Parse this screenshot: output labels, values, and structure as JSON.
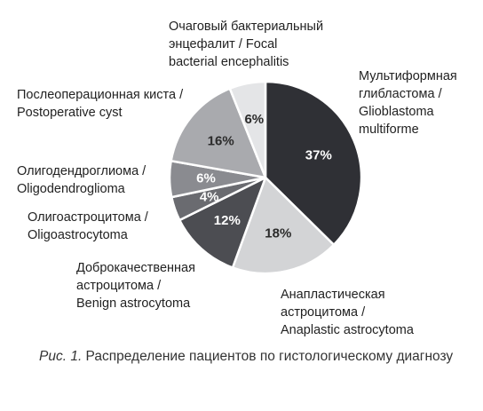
{
  "chart_data": {
    "type": "pie",
    "slices": [
      {
        "label_ru": "Мультиформная глибластома /",
        "label_en": "Glioblastoma multiforme",
        "value": 37,
        "value_label": "37%",
        "color": "#2f3035",
        "text_color": "#ffffff"
      },
      {
        "label_ru": "Анапластическая астроцитома /",
        "label_en": "Anaplastic astrocytoma",
        "value": 18,
        "value_label": "18%",
        "color": "#d3d4d6",
        "text_color": "#2b2b2b"
      },
      {
        "label_ru": "Доброкачественная астроцитома /",
        "label_en": "Benign astrocytoma",
        "value": 12,
        "value_label": "12%",
        "color": "#4c4d52",
        "text_color": "#ffffff"
      },
      {
        "label_ru": "Олигоастроцитома /",
        "label_en": "Oligoastrocytoma",
        "value": 4,
        "value_label": "4%",
        "color": "#6a6b70",
        "text_color": "#ffffff"
      },
      {
        "label_ru": "Олигодендроглиома /",
        "label_en": "Oligodendroglioma",
        "value": 6,
        "value_label": "6%",
        "color": "#8a8b90",
        "text_color": "#ffffff"
      },
      {
        "label_ru": "Послеоперационная киста /",
        "label_en": "Postoperative cyst",
        "value": 16,
        "value_label": "16%",
        "color": "#a9aaae",
        "text_color": "#2b2b2b"
      },
      {
        "label_ru": "Очаговый бактериальный энцефалит /",
        "label_en": "Focal bacterial encephalitis",
        "value": 6,
        "value_label": "6%",
        "color": "#e4e5e7",
        "text_color": "#2b2b2b"
      }
    ]
  },
  "labels": {
    "glioblastoma": [
      "Мультиформная",
      "глибластома /",
      "Glioblastoma",
      "multiforme"
    ],
    "anaplastic": [
      "Анапластическая",
      "астроцитома /",
      "Anaplastic astrocytoma"
    ],
    "benign": [
      "Доброкачественная",
      "астроцитома /",
      "Benign astrocytoma"
    ],
    "oligoastro": [
      "Олигоастроцитома /",
      "Oligoastrocytoma"
    ],
    "oligodendro": [
      "Олигодендроглиома /",
      "Oligodendroglioma"
    ],
    "cyst": [
      "Послеоперационная киста /",
      "Postoperative cyst"
    ],
    "encephalitis": [
      "Очаговый бактериальный",
      "энцефалит / Focal",
      "bacterial encephalitis"
    ]
  },
  "caption": {
    "prefix": "Рис. 1.",
    "text": " Распределение пациентов по гистологическому диагнозу"
  }
}
